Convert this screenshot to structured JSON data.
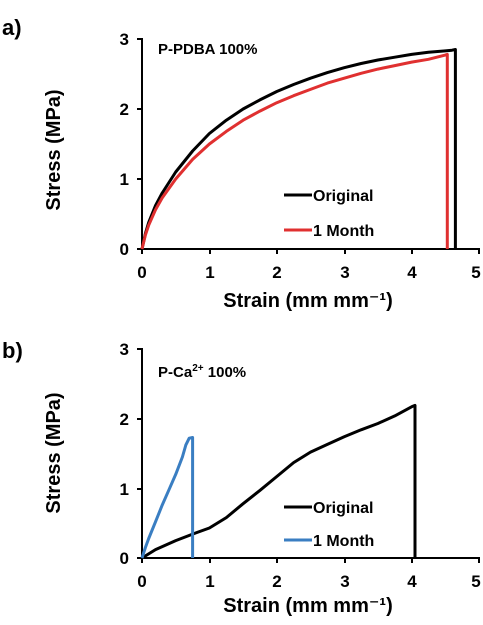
{
  "chart_data": [
    {
      "type": "line",
      "panel_label": "a)",
      "annotation": "P-PDBA 100%",
      "xlabel": "Strain (mm mm⁻¹)",
      "ylabel": "Stress (MPa)",
      "xlim": [
        0,
        5
      ],
      "ylim": [
        0,
        3
      ],
      "x_ticks": [
        "0",
        "1",
        "2",
        "3",
        "4",
        "5"
      ],
      "y_ticks": [
        "0",
        "1",
        "2",
        "3"
      ],
      "grid": false,
      "legend_position": "bottom-right",
      "series": [
        {
          "name": "Original",
          "color": "#000000",
          "x": [
            0,
            0.05,
            0.1,
            0.2,
            0.3,
            0.5,
            0.75,
            1.0,
            1.25,
            1.5,
            1.75,
            2.0,
            2.25,
            2.5,
            2.75,
            3.0,
            3.25,
            3.5,
            3.75,
            4.0,
            4.25,
            4.5,
            4.6,
            4.65,
            4.65
          ],
          "y": [
            0,
            0.22,
            0.38,
            0.62,
            0.8,
            1.1,
            1.4,
            1.65,
            1.84,
            2.0,
            2.13,
            2.25,
            2.35,
            2.44,
            2.52,
            2.59,
            2.65,
            2.7,
            2.74,
            2.78,
            2.81,
            2.83,
            2.84,
            2.85,
            0
          ]
        },
        {
          "name": "1 Month",
          "color": "#e03030",
          "x": [
            0,
            0.05,
            0.1,
            0.2,
            0.3,
            0.5,
            0.75,
            1.0,
            1.25,
            1.5,
            1.75,
            2.0,
            2.25,
            2.5,
            2.75,
            3.0,
            3.25,
            3.5,
            3.75,
            4.0,
            4.25,
            4.5,
            4.53,
            4.53
          ],
          "y": [
            0,
            0.2,
            0.34,
            0.56,
            0.73,
            1.0,
            1.28,
            1.5,
            1.68,
            1.84,
            1.97,
            2.09,
            2.19,
            2.28,
            2.37,
            2.44,
            2.51,
            2.57,
            2.62,
            2.67,
            2.71,
            2.77,
            2.78,
            0
          ]
        }
      ]
    },
    {
      "type": "line",
      "panel_label": "b)",
      "annotation_base": "P-Ca",
      "annotation_sup": "2+",
      "annotation_rest": " 100%",
      "xlabel": "Strain (mm mm⁻¹)",
      "ylabel": "Stress (MPa)",
      "xlim": [
        0,
        5
      ],
      "ylim": [
        0,
        3
      ],
      "x_ticks": [
        "0",
        "1",
        "2",
        "3",
        "4",
        "5"
      ],
      "y_ticks": [
        "0",
        "1",
        "2",
        "3"
      ],
      "grid": false,
      "legend_position": "bottom-right",
      "series": [
        {
          "name": "Original",
          "color": "#000000",
          "x": [
            0,
            0.2,
            0.5,
            0.8,
            1.0,
            1.25,
            1.5,
            1.75,
            2.0,
            2.25,
            2.5,
            2.75,
            3.0,
            3.25,
            3.5,
            3.75,
            4.0,
            4.05,
            4.05
          ],
          "y": [
            0,
            0.12,
            0.25,
            0.36,
            0.43,
            0.58,
            0.78,
            0.97,
            1.17,
            1.37,
            1.52,
            1.63,
            1.74,
            1.84,
            1.93,
            2.04,
            2.17,
            2.19,
            0
          ]
        },
        {
          "name": "1 Month",
          "color": "#3a7ec2",
          "x": [
            0,
            0.05,
            0.1,
            0.2,
            0.3,
            0.4,
            0.5,
            0.6,
            0.65,
            0.7,
            0.75,
            0.75
          ],
          "y": [
            0,
            0.15,
            0.28,
            0.52,
            0.76,
            0.98,
            1.2,
            1.45,
            1.62,
            1.72,
            1.73,
            0
          ]
        }
      ]
    }
  ]
}
